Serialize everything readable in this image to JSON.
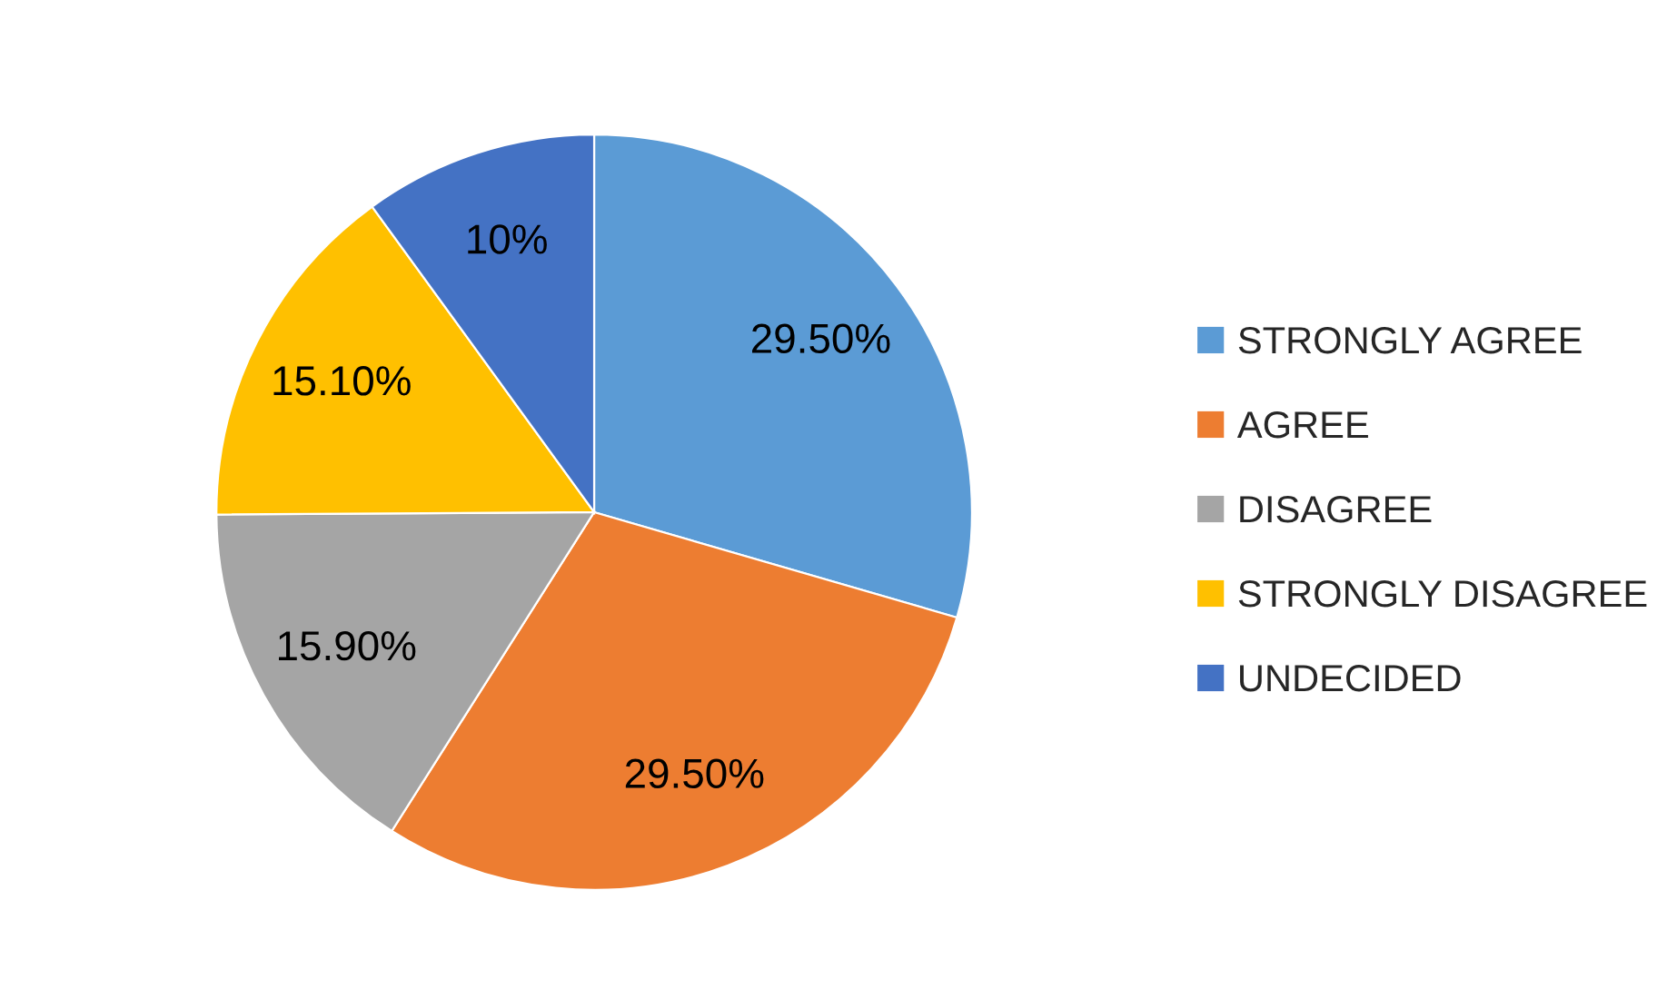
{
  "chart_data": {
    "type": "pie",
    "categories": [
      "STRONGLY AGREE",
      "AGREE",
      "DISAGREE",
      "STRONGLY DISAGREE",
      "UNDECIDED"
    ],
    "values": [
      29.5,
      29.5,
      15.9,
      15.1,
      10
    ],
    "colors": [
      "#5b9bd5",
      "#ed7d31",
      "#a5a5a5",
      "#ffc000",
      "#4472c4"
    ],
    "value_labels": [
      "29.50%",
      "29.50%",
      "15.90%",
      "15.10%",
      "10%"
    ],
    "legend": "right"
  }
}
